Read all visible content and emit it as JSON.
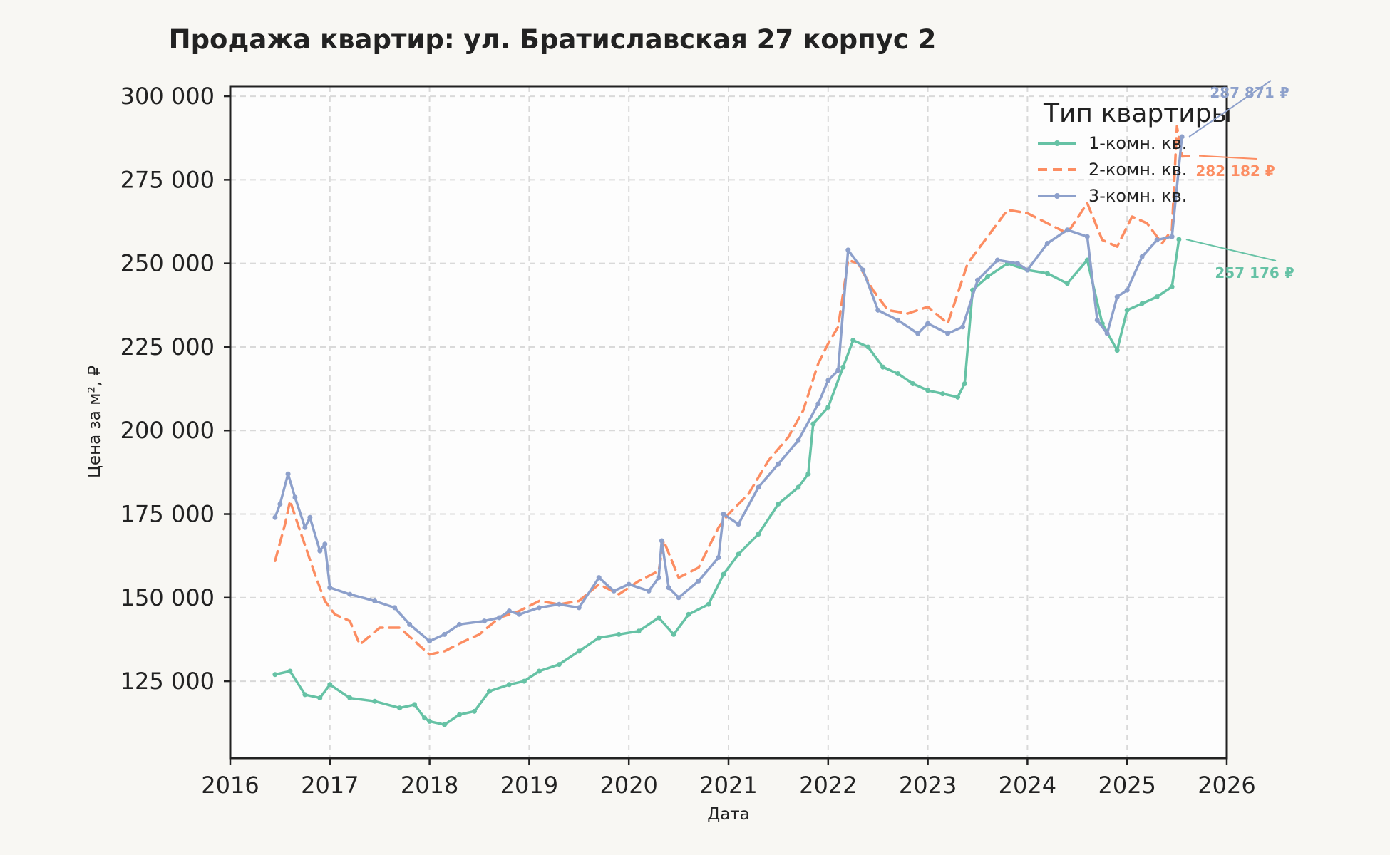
{
  "chart_data": {
    "type": "line",
    "title": "Продажа квартир: ул. Братиславская 27 корпус 2",
    "xlabel": "Дата",
    "ylabel": "Цена за м², ₽",
    "xlim": [
      2016,
      2026
    ],
    "ylim": [
      102000,
      303000
    ],
    "x_ticks": [
      "2016",
      "2017",
      "2018",
      "2019",
      "2020",
      "2021",
      "2022",
      "2023",
      "2024",
      "2025",
      "2026"
    ],
    "y_ticks": [
      "125 000",
      "150 000",
      "175 000",
      "200 000",
      "225 000",
      "250 000",
      "275 000",
      "300 000"
    ],
    "grid": true,
    "legend": {
      "title": "Тип квартиры",
      "placement": "top-right"
    },
    "series": [
      {
        "name": "1-комн. кв.",
        "color": "#66c2a5",
        "style": "solid",
        "end_label": "257 176 ₽",
        "x": [
          2016.45,
          2016.6,
          2016.75,
          2016.9,
          2017.0,
          2017.2,
          2017.45,
          2017.7,
          2017.85,
          2017.95,
          2018.0,
          2018.15,
          2018.3,
          2018.45,
          2018.6,
          2018.8,
          2018.95,
          2019.1,
          2019.3,
          2019.5,
          2019.7,
          2019.9,
          2020.1,
          2020.3,
          2020.45,
          2020.6,
          2020.8,
          2020.95,
          2021.1,
          2021.3,
          2021.5,
          2021.7,
          2021.8,
          2021.85,
          2022.0,
          2022.15,
          2022.25,
          2022.4,
          2022.55,
          2022.7,
          2022.85,
          2023.0,
          2023.15,
          2023.3,
          2023.37,
          2023.45,
          2023.6,
          2023.8,
          2024.0,
          2024.2,
          2024.4,
          2024.6,
          2024.75,
          2024.9,
          2025.0,
          2025.15,
          2025.3,
          2025.45,
          2025.52
        ],
        "y": [
          127000,
          128000,
          121000,
          120000,
          124000,
          120000,
          119000,
          117000,
          118000,
          114000,
          113000,
          112000,
          115000,
          116000,
          122000,
          124000,
          125000,
          128000,
          130000,
          134000,
          138000,
          139000,
          140000,
          144000,
          139000,
          145000,
          148000,
          157000,
          163000,
          169000,
          178000,
          183000,
          187000,
          202000,
          207000,
          219000,
          227000,
          225000,
          219000,
          217000,
          214000,
          212000,
          211000,
          210000,
          214000,
          242000,
          246000,
          250000,
          248000,
          247000,
          244000,
          251000,
          232000,
          224000,
          236000,
          238000,
          240000,
          243000,
          257176
        ]
      },
      {
        "name": "2-комн. кв.",
        "color": "#fc8d62",
        "style": "dashed",
        "end_label": "282 182 ₽",
        "x": [
          2016.45,
          2016.55,
          2016.6,
          2016.7,
          2016.85,
          2016.95,
          2017.05,
          2017.2,
          2017.3,
          2017.5,
          2017.7,
          2017.85,
          2018.0,
          2018.15,
          2018.35,
          2018.5,
          2018.7,
          2018.9,
          2019.1,
          2019.3,
          2019.5,
          2019.7,
          2019.9,
          2020.1,
          2020.3,
          2020.35,
          2020.5,
          2020.7,
          2020.9,
          2021.0,
          2021.2,
          2021.4,
          2021.6,
          2021.75,
          2021.9,
          2022.0,
          2022.1,
          2022.2,
          2022.3,
          2022.45,
          2022.6,
          2022.8,
          2023.0,
          2023.2,
          2023.4,
          2023.6,
          2023.8,
          2024.0,
          2024.2,
          2024.4,
          2024.6,
          2024.75,
          2024.9,
          2025.05,
          2025.2,
          2025.35,
          2025.45,
          2025.5,
          2025.55,
          2025.65
        ],
        "y": [
          161000,
          172000,
          179000,
          170000,
          157000,
          149000,
          145000,
          143000,
          136000,
          141000,
          141000,
          137000,
          133000,
          134000,
          137000,
          139000,
          144000,
          146000,
          149000,
          148000,
          149000,
          154000,
          151000,
          155000,
          158000,
          167000,
          156000,
          159000,
          171000,
          175000,
          181000,
          191000,
          198000,
          206000,
          220000,
          226000,
          231000,
          251000,
          250000,
          242000,
          236000,
          235000,
          237000,
          232000,
          250000,
          258000,
          266000,
          265000,
          262000,
          259000,
          268000,
          257000,
          255000,
          264000,
          262000,
          256000,
          260000,
          291000,
          282000,
          282182
        ]
      },
      {
        "name": "3-комн. кв.",
        "color": "#8da0cb",
        "style": "solid",
        "end_label": "287 871 ₽",
        "x": [
          2016.45,
          2016.5,
          2016.58,
          2016.65,
          2016.75,
          2016.8,
          2016.9,
          2016.95,
          2017.0,
          2017.2,
          2017.45,
          2017.65,
          2017.8,
          2018.0,
          2018.15,
          2018.3,
          2018.55,
          2018.7,
          2018.8,
          2018.9,
          2019.1,
          2019.3,
          2019.5,
          2019.7,
          2019.85,
          2020.0,
          2020.2,
          2020.3,
          2020.33,
          2020.4,
          2020.5,
          2020.7,
          2020.9,
          2020.95,
          2021.1,
          2021.3,
          2021.5,
          2021.7,
          2021.9,
          2022.0,
          2022.1,
          2022.2,
          2022.35,
          2022.5,
          2022.7,
          2022.9,
          2023.0,
          2023.2,
          2023.35,
          2023.5,
          2023.7,
          2023.9,
          2024.0,
          2024.2,
          2024.4,
          2024.6,
          2024.7,
          2024.8,
          2024.9,
          2025.0,
          2025.15,
          2025.3,
          2025.45,
          2025.55
        ],
        "y": [
          174000,
          178000,
          187000,
          180000,
          171000,
          174000,
          164000,
          166000,
          153000,
          151000,
          149000,
          147000,
          142000,
          137000,
          139000,
          142000,
          143000,
          144000,
          146000,
          145000,
          147000,
          148000,
          147000,
          156000,
          152000,
          154000,
          152000,
          156000,
          167000,
          153000,
          150000,
          155000,
          162000,
          175000,
          172000,
          183000,
          190000,
          197000,
          208000,
          215000,
          218000,
          254000,
          248000,
          236000,
          233000,
          229000,
          232000,
          229000,
          231000,
          245000,
          251000,
          250000,
          248000,
          256000,
          260000,
          258000,
          233000,
          229000,
          240000,
          242000,
          252000,
          257000,
          258000,
          287871
        ]
      }
    ]
  }
}
